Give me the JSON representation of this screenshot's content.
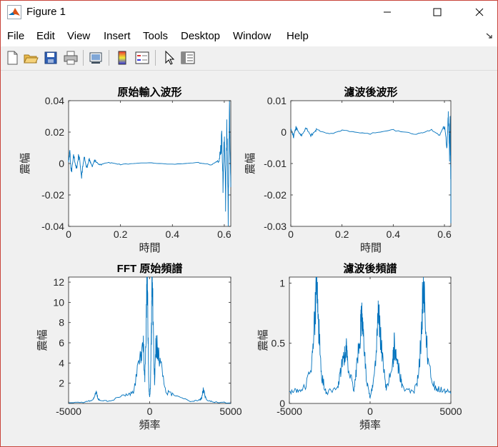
{
  "window": {
    "title": "Figure 1",
    "controls": {
      "minimize": "minimize-icon",
      "maximize": "maximize-icon",
      "close": "close-icon"
    }
  },
  "menu": [
    "File",
    "Edit",
    "View",
    "Insert",
    "Tools",
    "Desktop",
    "Window",
    "Help"
  ],
  "menu_overflow_icon": "arrow-icon",
  "toolbar": [
    "new-figure-icon",
    "open-file-icon",
    "save-icon",
    "print-icon",
    "link-plot-icon",
    "insert-colorbar-icon",
    "insert-legend-icon",
    "edit-plot-arrow-icon",
    "property-inspector-icon"
  ],
  "colors": {
    "line": "#0072bd",
    "axes": "#262626",
    "figure_bg": "#f0f0f0"
  },
  "chart_data": [
    {
      "type": "line",
      "title": "原始輸入波形",
      "xlabel": "時間",
      "ylabel": "震幅",
      "xlim": [
        0,
        0.625
      ],
      "ylim": [
        -0.04,
        0.04
      ],
      "xticks": [
        "0",
        "0.2",
        "0.4",
        "0.6"
      ],
      "yticks": [
        "0.04",
        "0.02",
        "0",
        "-0.02",
        "-0.04"
      ],
      "grid": false,
      "series": [
        {
          "x": [
            0,
            0.005,
            0.01,
            0.02,
            0.03,
            0.04,
            0.05,
            0.06,
            0.07,
            0.08,
            0.09,
            0.1,
            0.12,
            0.15,
            0.2,
            0.3,
            0.4,
            0.5,
            0.55,
            0.58,
            0.59,
            0.595,
            0.6,
            0.605,
            0.61,
            0.615,
            0.62,
            0.625
          ],
          "y": [
            0.002,
            0.007,
            -0.006,
            0.005,
            -0.004,
            0.006,
            -0.008,
            0.004,
            -0.003,
            0.003,
            -0.002,
            0.002,
            -0.001,
            0.0008,
            -0.0006,
            0.0005,
            -0.0005,
            0.0005,
            -0.0008,
            0.002,
            0.015,
            -0.012,
            0.018,
            -0.02,
            0.03,
            -0.025,
            0.028,
            -0.015
          ]
        }
      ]
    },
    {
      "type": "line",
      "title": "濾波後波形",
      "xlabel": "時間",
      "ylabel": "震幅",
      "xlim": [
        0,
        0.625
      ],
      "ylim": [
        -0.03,
        0.01
      ],
      "xticks": [
        "0",
        "0.2",
        "0.4",
        "0.6"
      ],
      "yticks": [
        "0.01",
        "0",
        "-0.01",
        "-0.02",
        "-0.03"
      ],
      "grid": false,
      "series": [
        {
          "x": [
            0,
            0.01,
            0.02,
            0.04,
            0.06,
            0.08,
            0.1,
            0.15,
            0.2,
            0.3,
            0.4,
            0.5,
            0.55,
            0.58,
            0.6,
            0.61,
            0.615,
            0.62,
            0.622,
            0.625
          ],
          "y": [
            0.001,
            -0.0015,
            0.0014,
            -0.0013,
            0.0012,
            -0.0011,
            0.0008,
            -0.0007,
            0.0006,
            -0.0006,
            0.0006,
            -0.0007,
            0.0009,
            -0.0012,
            0.002,
            -0.004,
            0.005,
            -0.006,
            0.007,
            -0.029
          ]
        }
      ]
    },
    {
      "type": "line",
      "title": "FFT 原始頻譜",
      "xlabel": "頻率",
      "ylabel": "震幅",
      "xlim": [
        -5000,
        5000
      ],
      "ylim": [
        0,
        12.5
      ],
      "xticks": [
        "-5000",
        "0",
        "5000"
      ],
      "yticks": [
        "12",
        "10",
        "8",
        "6",
        "4",
        "2"
      ],
      "grid": false,
      "series": [
        {
          "x": [
            -5000,
            -4000,
            -3500,
            -3300,
            -3200,
            -3100,
            -2500,
            -1500,
            -1000,
            -600,
            -400,
            -300,
            -200,
            -150,
            -100,
            -50,
            0,
            50,
            100,
            150,
            200,
            300,
            400,
            600,
            1000,
            1500,
            2500,
            3100,
            3200,
            3300,
            3500,
            4000,
            5000
          ],
          "y": [
            0.05,
            0.1,
            0.3,
            1.2,
            0.5,
            0.3,
            0.2,
            0.8,
            1.0,
            4.0,
            5.5,
            2.0,
            8.0,
            12.5,
            6.0,
            1.5,
            0.5,
            1.5,
            6.0,
            12.5,
            8.0,
            2.0,
            5.5,
            4.0,
            1.0,
            0.8,
            0.2,
            0.3,
            0.5,
            1.2,
            0.3,
            0.1,
            0.05
          ]
        }
      ]
    },
    {
      "type": "line",
      "title": "濾波後頻譜",
      "xlabel": "頻率",
      "ylabel": "震幅",
      "xlim": [
        -5000,
        5000
      ],
      "ylim": [
        0,
        1.05
      ],
      "xticks": [
        "-5000",
        "0",
        "5000"
      ],
      "yticks": [
        "1",
        "0.5",
        "0"
      ],
      "grid": false,
      "series": [
        {
          "x": [
            -5000,
            -4500,
            -4000,
            -3600,
            -3400,
            -3300,
            -3200,
            -3000,
            -2700,
            -2000,
            -1800,
            -1600,
            -1500,
            -1400,
            -1000,
            -800,
            -600,
            -500,
            -400,
            -200,
            0,
            200,
            400,
            500,
            600,
            800,
            1000,
            1400,
            1500,
            1600,
            1800,
            2000,
            2700,
            3000,
            3200,
            3300,
            3400,
            3600,
            4000,
            4500,
            5000
          ],
          "y": [
            0.08,
            0.1,
            0.12,
            0.3,
            0.7,
            1.0,
            0.6,
            0.2,
            0.08,
            0.12,
            0.25,
            0.35,
            0.45,
            0.3,
            0.1,
            0.3,
            0.55,
            0.7,
            0.45,
            0.15,
            0.05,
            0.15,
            0.45,
            0.7,
            0.55,
            0.3,
            0.1,
            0.3,
            0.45,
            0.35,
            0.25,
            0.12,
            0.08,
            0.2,
            0.6,
            1.0,
            0.7,
            0.3,
            0.12,
            0.1,
            0.08
          ]
        }
      ]
    }
  ],
  "extra_visible_text": "'一"
}
